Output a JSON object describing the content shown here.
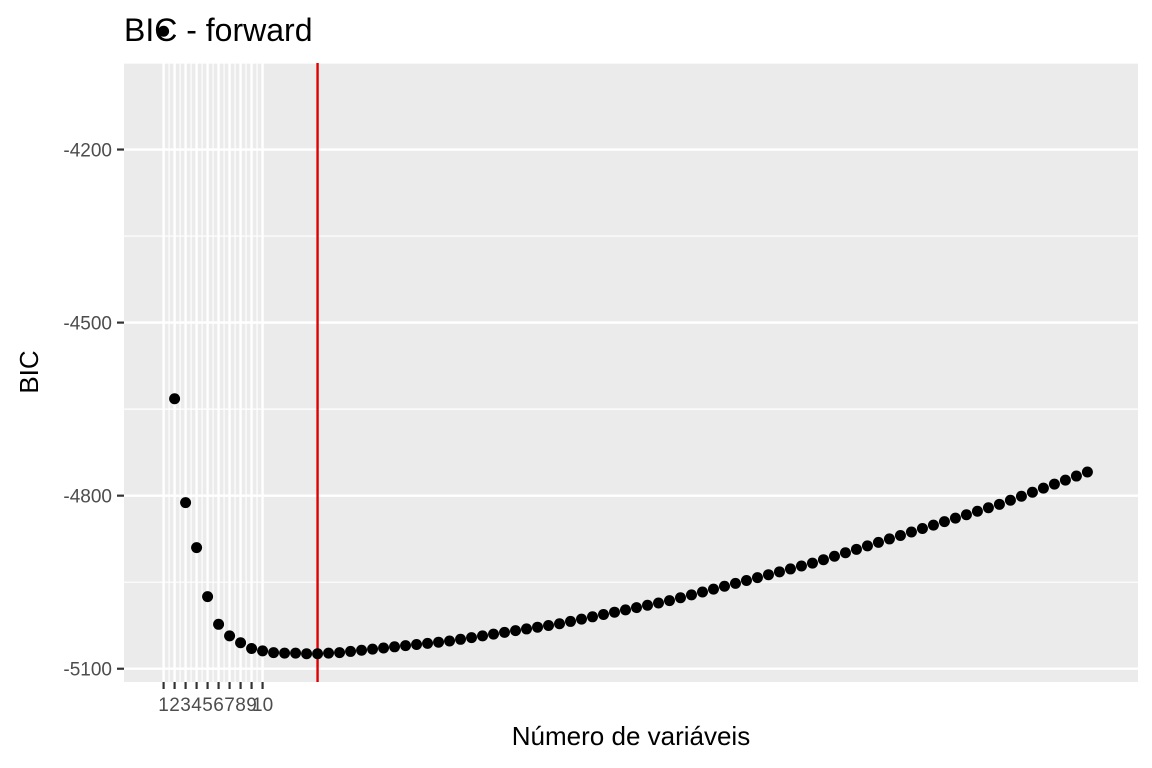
{
  "chart_data": {
    "type": "scatter",
    "title": "BIC - forward",
    "xlabel": "Número de variáveis",
    "ylabel": "BIC",
    "xlim": [
      -2.6,
      89.6
    ],
    "ylim": [
      -5123,
      -4050
    ],
    "x_breaks": [
      1,
      2,
      3,
      4,
      5,
      6,
      7,
      8,
      9,
      10
    ],
    "x_tick_labels": [
      "1",
      "2",
      "3",
      "4",
      "5",
      "6",
      "7",
      "8",
      "9",
      "10"
    ],
    "y_breaks": [
      -4200,
      -4500,
      -4800,
      -5100
    ],
    "y_tick_labels": [
      "-4200",
      "-4500",
      "-4800",
      "-5100"
    ],
    "y_minor_breaks": [
      -4050,
      -4350,
      -4650,
      -4950
    ],
    "grid": true,
    "vline": {
      "x": 15,
      "color": "#e00000"
    },
    "point_color": "#000000",
    "panel_background": "#ebebeb",
    "series": [
      {
        "x": [
          1,
          2,
          3,
          4,
          5,
          6,
          7,
          8,
          9,
          10,
          11,
          12,
          13,
          14,
          15,
          16,
          17,
          18,
          19,
          20,
          21,
          22,
          23,
          24,
          25,
          26,
          27,
          28,
          29,
          30,
          31,
          32,
          33,
          34,
          35,
          36,
          37,
          38,
          39,
          40,
          41,
          42,
          43,
          44,
          45,
          46,
          47,
          48,
          49,
          50,
          51,
          52,
          53,
          54,
          55,
          56,
          57,
          58,
          59,
          60,
          61,
          62,
          63,
          64,
          65,
          66,
          67,
          68,
          69,
          70,
          71,
          72,
          73,
          74,
          75,
          76,
          77,
          78,
          79,
          80,
          81,
          82,
          83,
          84,
          85
        ],
        "y": [
          -3995,
          -4632,
          -4812,
          -4890,
          -4975,
          -5023,
          -5043,
          -5055,
          -5065,
          -5069,
          -5072,
          -5073,
          -5073,
          -5074,
          -5074,
          -5073,
          -5072,
          -5070,
          -5068,
          -5066,
          -5064,
          -5062,
          -5060,
          -5058,
          -5056,
          -5054,
          -5052,
          -5049,
          -5046,
          -5043,
          -5040,
          -5037,
          -5034,
          -5031,
          -5028,
          -5025,
          -5022,
          -5018,
          -5014,
          -5010,
          -5006,
          -5002,
          -4998,
          -4994,
          -4990,
          -4986,
          -4982,
          -4977,
          -4972,
          -4967,
          -4962,
          -4957,
          -4952,
          -4947,
          -4942,
          -4937,
          -4932,
          -4927,
          -4922,
          -4917,
          -4911,
          -4905,
          -4899,
          -4893,
          -4887,
          -4881,
          -4875,
          -4869,
          -4863,
          -4857,
          -4851,
          -4845,
          -4839,
          -4833,
          -4827,
          -4821,
          -4815,
          -4808,
          -4801,
          -4794,
          -4787,
          -4780,
          -4773,
          -4766,
          -4759
        ]
      }
    ]
  }
}
